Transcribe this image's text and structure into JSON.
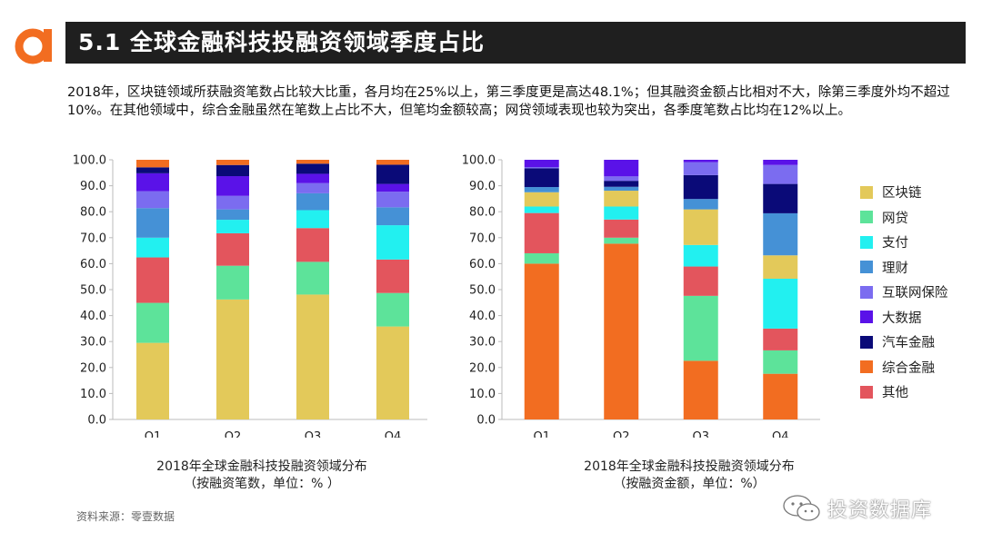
{
  "header": {
    "title": "5.1  全球金融科技投融资领域季度占比"
  },
  "description": "2018年，区块链领域所获融资笔数占比较大比重，各月均在25%以上，第三季度更是高达48.1%；但其融资金额占比相对不大，除第三季度外均不超过10%。在其他领域中，综合金融虽然在笔数上占比不大，但笔均金额较高；网贷领域表现也较为突出，各季度笔数占比均在12%以上。",
  "captions": {
    "left": [
      "2018年全球金融科技投融资领域分布",
      "（按融资笔数，单位：% ）"
    ],
    "right": [
      "2018年全球金融科技投融资领域分布",
      "（按融资金额，单位：%）"
    ]
  },
  "source": "资料来源：零壹数据",
  "watermark": "投资数据库",
  "colors": {
    "区块链": "#e3c95a",
    "网贷": "#5de39a",
    "支付": "#22f0f0",
    "理财": "#4591d6",
    "互联网保险": "#7b6cf0",
    "大数据": "#5a12e8",
    "汽车金融": "#0a0a78",
    "综合金融": "#f26d21",
    "其他": "#e3555d"
  },
  "chart_data": [
    {
      "type": "bar",
      "stacked": true,
      "categories": [
        "Q1",
        "Q2",
        "Q3",
        "Q4"
      ],
      "ylim": [
        0,
        100
      ],
      "yticks": [
        "0.0",
        "10.0",
        "20.0",
        "30.0",
        "40.0",
        "50.0",
        "60.0",
        "70.0",
        "80.0",
        "90.0",
        "100.0"
      ],
      "series": [
        {
          "name": "区块链",
          "values": [
            29.5,
            46.2,
            48.1,
            35.8
          ]
        },
        {
          "name": "网贷",
          "values": [
            15.4,
            13.0,
            12.6,
            12.9
          ]
        },
        {
          "name": "其他",
          "values": [
            17.5,
            12.5,
            13.0,
            12.9
          ]
        },
        {
          "name": "支付",
          "values": [
            7.6,
            5.2,
            6.9,
            13.2
          ]
        },
        {
          "name": "理财",
          "values": [
            11.4,
            4.0,
            6.5,
            6.9
          ]
        },
        {
          "name": "互联网保险",
          "values": [
            6.5,
            5.2,
            3.9,
            6.0
          ]
        },
        {
          "name": "大数据",
          "values": [
            6.9,
            7.6,
            3.6,
            3.0
          ]
        },
        {
          "name": "汽车金融",
          "values": [
            2.3,
            4.3,
            3.9,
            7.4
          ]
        },
        {
          "name": "综合金融",
          "values": [
            2.9,
            2.0,
            1.5,
            1.9
          ]
        }
      ]
    },
    {
      "type": "bar",
      "stacked": true,
      "categories": [
        "Q1",
        "Q2",
        "Q3",
        "Q4"
      ],
      "ylim": [
        0,
        100
      ],
      "yticks": [
        "0.0",
        "10.0",
        "20.0",
        "30.0",
        "40.0",
        "50.0",
        "60.0",
        "70.0",
        "80.0",
        "90.0",
        "100.0"
      ],
      "series": [
        {
          "name": "综合金融",
          "values": [
            60.0,
            67.7,
            22.6,
            17.6
          ]
        },
        {
          "name": "网贷",
          "values": [
            4.0,
            2.3,
            25.0,
            9.0
          ]
        },
        {
          "name": "其他",
          "values": [
            15.5,
            7.0,
            11.3,
            8.4
          ]
        },
        {
          "name": "支付",
          "values": [
            2.5,
            5.0,
            8.3,
            19.2
          ]
        },
        {
          "name": "区块链",
          "values": [
            5.5,
            6.1,
            13.7,
            9.0
          ]
        },
        {
          "name": "理财",
          "values": [
            2.0,
            1.5,
            4.0,
            16.2
          ]
        },
        {
          "name": "汽车金融",
          "values": [
            7.2,
            2.3,
            9.2,
            11.3
          ]
        },
        {
          "name": "互联网保险",
          "values": [
            0.5,
            1.7,
            5.0,
            7.3
          ]
        },
        {
          "name": "大数据",
          "values": [
            2.8,
            6.4,
            0.9,
            2.0
          ]
        }
      ]
    }
  ],
  "legend": [
    "区块链",
    "网贷",
    "支付",
    "理财",
    "互联网保险",
    "大数据",
    "汽车金融",
    "综合金融",
    "其他"
  ]
}
